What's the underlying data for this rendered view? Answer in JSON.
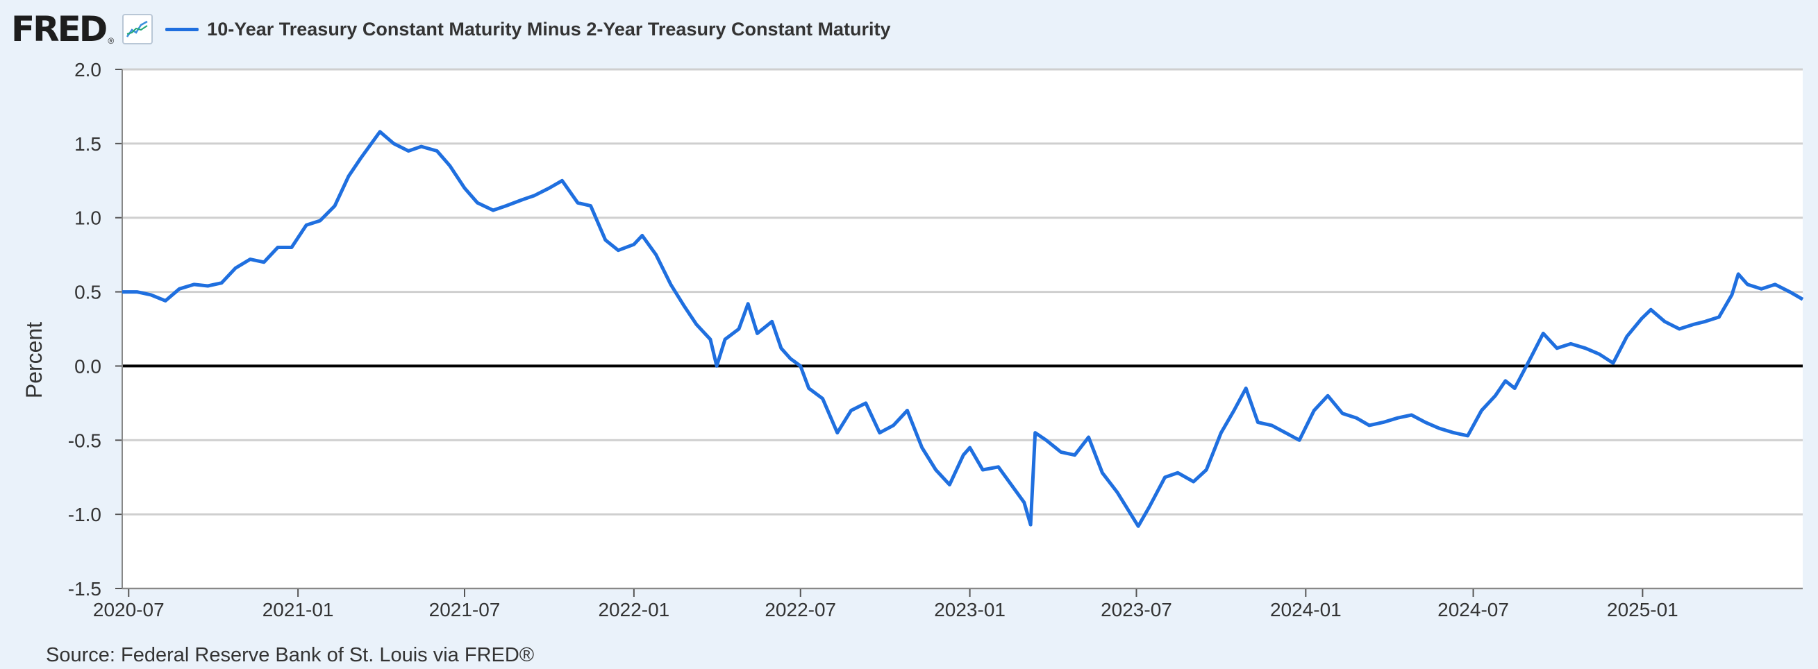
{
  "header": {
    "logo_text": "FRED",
    "logo_reg": "®",
    "chart_icon": "line-chart-icon"
  },
  "colors": {
    "series": "#1f6fdf",
    "background": "#eaf2fa",
    "plot_background": "#ffffff",
    "grid": "#cfcfcf",
    "zero_line": "#000000",
    "text": "#333333"
  },
  "source": "Source: Federal Reserve Bank of St. Louis via FRED®",
  "chart_data": {
    "type": "line",
    "title": "",
    "xlabel": "",
    "ylabel": "Percent",
    "ylim": [
      -1.5,
      2.0
    ],
    "y_ticks": [
      "2.0",
      "1.5",
      "1.0",
      "0.5",
      "0.0",
      "-0.5",
      "-1.0",
      "-1.5"
    ],
    "x_ticks": [
      "2020-07",
      "2021-01",
      "2021-07",
      "2022-01",
      "2022-07",
      "2023-01",
      "2023-07",
      "2024-01",
      "2024-07",
      "2025-01"
    ],
    "x_range": [
      "2020-06-24",
      "2025-06-24"
    ],
    "grid": true,
    "series": [
      {
        "name": "10-Year Treasury Constant Maturity Minus 2-Year Treasury Constant Maturity",
        "points": [
          [
            "2020-06-24",
            0.5
          ],
          [
            "2020-07-10",
            0.5
          ],
          [
            "2020-07-25",
            0.48
          ],
          [
            "2020-08-10",
            0.44
          ],
          [
            "2020-08-25",
            0.52
          ],
          [
            "2020-09-10",
            0.55
          ],
          [
            "2020-09-25",
            0.54
          ],
          [
            "2020-10-10",
            0.56
          ],
          [
            "2020-10-25",
            0.66
          ],
          [
            "2020-11-10",
            0.72
          ],
          [
            "2020-11-25",
            0.7
          ],
          [
            "2020-12-10",
            0.8
          ],
          [
            "2020-12-25",
            0.8
          ],
          [
            "2021-01-10",
            0.95
          ],
          [
            "2021-01-25",
            0.98
          ],
          [
            "2021-02-10",
            1.08
          ],
          [
            "2021-02-25",
            1.28
          ],
          [
            "2021-03-10",
            1.4
          ],
          [
            "2021-03-31",
            1.58
          ],
          [
            "2021-04-15",
            1.5
          ],
          [
            "2021-05-01",
            1.45
          ],
          [
            "2021-05-15",
            1.48
          ],
          [
            "2021-06-01",
            1.45
          ],
          [
            "2021-06-15",
            1.35
          ],
          [
            "2021-07-01",
            1.2
          ],
          [
            "2021-07-15",
            1.1
          ],
          [
            "2021-08-01",
            1.05
          ],
          [
            "2021-08-15",
            1.08
          ],
          [
            "2021-09-01",
            1.12
          ],
          [
            "2021-09-15",
            1.15
          ],
          [
            "2021-10-01",
            1.2
          ],
          [
            "2021-10-15",
            1.25
          ],
          [
            "2021-11-01",
            1.1
          ],
          [
            "2021-11-15",
            1.08
          ],
          [
            "2021-12-01",
            0.85
          ],
          [
            "2021-12-15",
            0.78
          ],
          [
            "2022-01-01",
            0.82
          ],
          [
            "2022-01-10",
            0.88
          ],
          [
            "2022-01-25",
            0.75
          ],
          [
            "2022-02-10",
            0.55
          ],
          [
            "2022-02-25",
            0.4
          ],
          [
            "2022-03-10",
            0.28
          ],
          [
            "2022-03-25",
            0.18
          ],
          [
            "2022-04-01",
            0.0
          ],
          [
            "2022-04-10",
            0.18
          ],
          [
            "2022-04-25",
            0.25
          ],
          [
            "2022-05-05",
            0.42
          ],
          [
            "2022-05-15",
            0.22
          ],
          [
            "2022-05-31",
            0.3
          ],
          [
            "2022-06-10",
            0.12
          ],
          [
            "2022-06-20",
            0.05
          ],
          [
            "2022-07-01",
            0.0
          ],
          [
            "2022-07-10",
            -0.15
          ],
          [
            "2022-07-25",
            -0.22
          ],
          [
            "2022-08-10",
            -0.45
          ],
          [
            "2022-08-25",
            -0.3
          ],
          [
            "2022-09-10",
            -0.25
          ],
          [
            "2022-09-25",
            -0.45
          ],
          [
            "2022-10-10",
            -0.4
          ],
          [
            "2022-10-25",
            -0.3
          ],
          [
            "2022-11-10",
            -0.55
          ],
          [
            "2022-11-25",
            -0.7
          ],
          [
            "2022-12-10",
            -0.8
          ],
          [
            "2022-12-25",
            -0.6
          ],
          [
            "2023-01-01",
            -0.55
          ],
          [
            "2023-01-15",
            -0.7
          ],
          [
            "2023-02-01",
            -0.68
          ],
          [
            "2023-02-15",
            -0.8
          ],
          [
            "2023-03-01",
            -0.92
          ],
          [
            "2023-03-08",
            -1.07
          ],
          [
            "2023-03-13",
            -0.45
          ],
          [
            "2023-03-25",
            -0.5
          ],
          [
            "2023-04-10",
            -0.58
          ],
          [
            "2023-04-25",
            -0.6
          ],
          [
            "2023-05-10",
            -0.48
          ],
          [
            "2023-05-25",
            -0.72
          ],
          [
            "2023-06-10",
            -0.85
          ],
          [
            "2023-06-25",
            -1.0
          ],
          [
            "2023-07-03",
            -1.08
          ],
          [
            "2023-07-15",
            -0.95
          ],
          [
            "2023-08-01",
            -0.75
          ],
          [
            "2023-08-15",
            -0.72
          ],
          [
            "2023-09-01",
            -0.78
          ],
          [
            "2023-09-15",
            -0.7
          ],
          [
            "2023-10-01",
            -0.45
          ],
          [
            "2023-10-15",
            -0.3
          ],
          [
            "2023-10-28",
            -0.15
          ],
          [
            "2023-11-10",
            -0.38
          ],
          [
            "2023-11-25",
            -0.4
          ],
          [
            "2023-12-10",
            -0.45
          ],
          [
            "2023-12-25",
            -0.5
          ],
          [
            "2024-01-10",
            -0.3
          ],
          [
            "2024-01-25",
            -0.2
          ],
          [
            "2024-02-10",
            -0.32
          ],
          [
            "2024-02-25",
            -0.35
          ],
          [
            "2024-03-10",
            -0.4
          ],
          [
            "2024-03-25",
            -0.38
          ],
          [
            "2024-04-10",
            -0.35
          ],
          [
            "2024-04-25",
            -0.33
          ],
          [
            "2024-05-10",
            -0.38
          ],
          [
            "2024-05-25",
            -0.42
          ],
          [
            "2024-06-10",
            -0.45
          ],
          [
            "2024-06-25",
            -0.47
          ],
          [
            "2024-07-10",
            -0.3
          ],
          [
            "2024-07-25",
            -0.2
          ],
          [
            "2024-08-05",
            -0.1
          ],
          [
            "2024-08-15",
            -0.15
          ],
          [
            "2024-09-01",
            0.05
          ],
          [
            "2024-09-15",
            0.22
          ],
          [
            "2024-09-30",
            0.12
          ],
          [
            "2024-10-15",
            0.15
          ],
          [
            "2024-10-31",
            0.12
          ],
          [
            "2024-11-15",
            0.08
          ],
          [
            "2024-11-30",
            0.02
          ],
          [
            "2024-12-15",
            0.2
          ],
          [
            "2024-12-31",
            0.32
          ],
          [
            "2025-01-10",
            0.38
          ],
          [
            "2025-01-25",
            0.3
          ],
          [
            "2025-02-10",
            0.25
          ],
          [
            "2025-02-25",
            0.28
          ],
          [
            "2025-03-10",
            0.3
          ],
          [
            "2025-03-25",
            0.33
          ],
          [
            "2025-04-08",
            0.48
          ],
          [
            "2025-04-15",
            0.62
          ],
          [
            "2025-04-25",
            0.55
          ],
          [
            "2025-05-10",
            0.52
          ],
          [
            "2025-05-25",
            0.55
          ],
          [
            "2025-06-10",
            0.5
          ],
          [
            "2025-06-24",
            0.45
          ]
        ]
      }
    ]
  }
}
